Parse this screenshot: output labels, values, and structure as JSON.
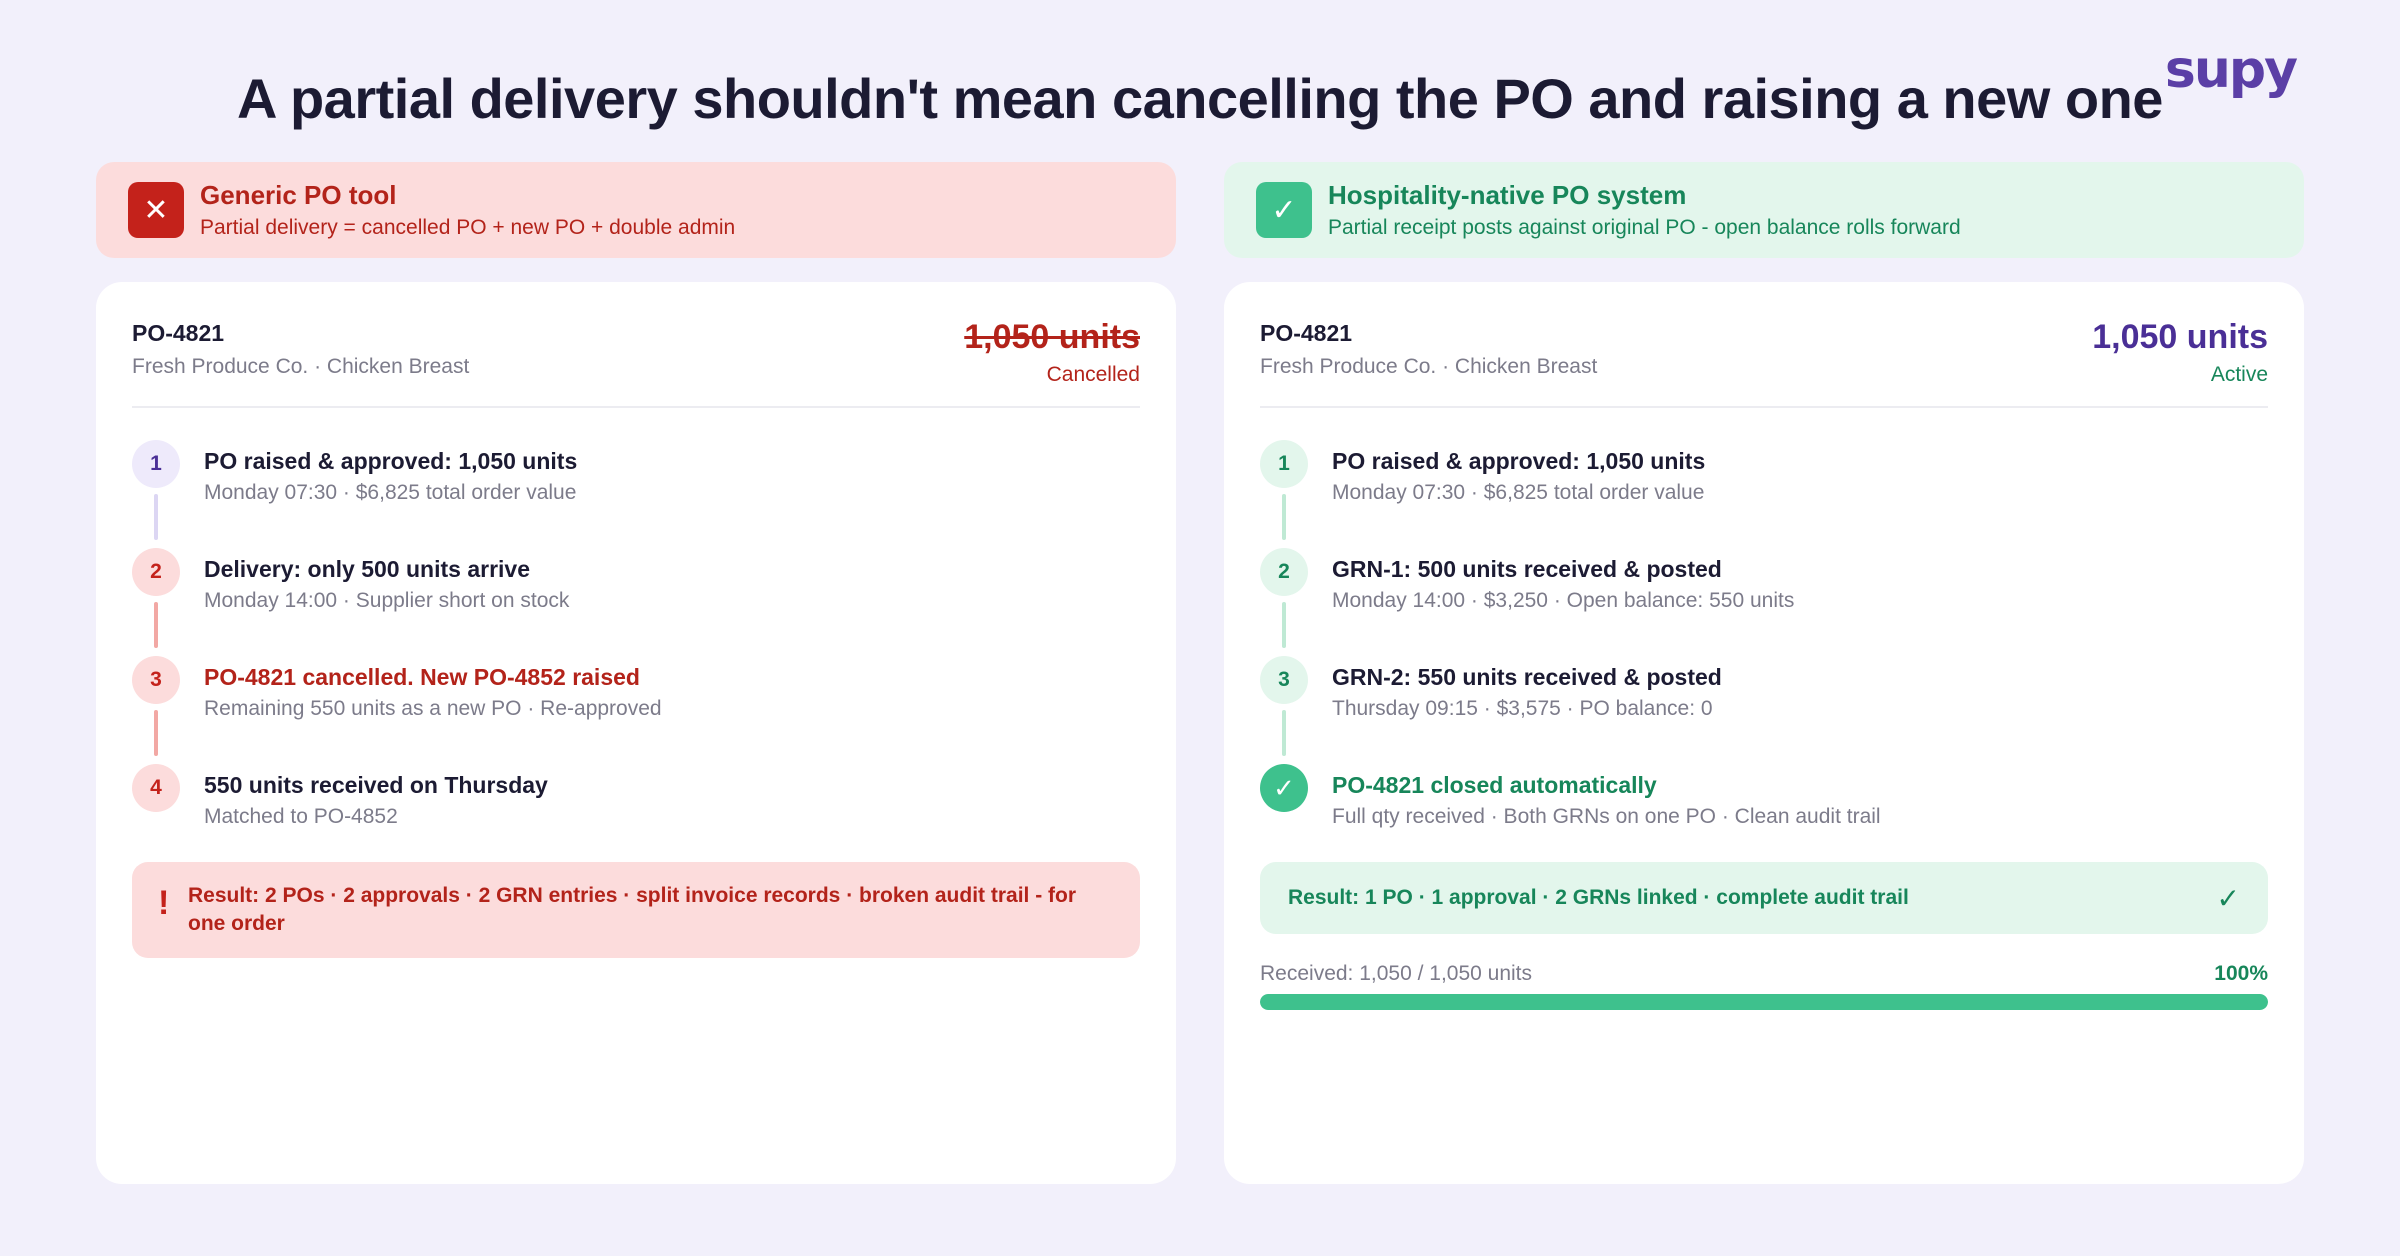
{
  "brand": {
    "logo": "supy"
  },
  "headline": "A partial delivery shouldn't mean cancelling the PO and raising a new one",
  "left": {
    "banner": {
      "icon": "x-icon",
      "title": "Generic PO tool",
      "subtitle": "Partial delivery = cancelled PO + new PO + double admin"
    },
    "card": {
      "po_number": "PO-4821",
      "supplier": "Fresh Produce Co. · Chicken Breast",
      "quantity": "1,050 units",
      "status": "Cancelled",
      "steps": [
        {
          "num": "1",
          "title": "PO raised & approved: 1,050 units",
          "sub": "Monday 07:30 · $6,825 total order value"
        },
        {
          "num": "2",
          "title": "Delivery: only 500 units arrive",
          "sub": "Monday 14:00 · Supplier short on stock"
        },
        {
          "num": "3",
          "title": "PO-4821 cancelled. New PO-4852 raised",
          "sub": "Remaining 550 units as a new PO · Re-approved"
        },
        {
          "num": "4",
          "title": "550 units received on Thursday",
          "sub": "Matched to PO-4852"
        }
      ],
      "result": {
        "icon": "!",
        "text": "Result: 2 POs · 2 approvals · 2 GRN entries · split invoice records · broken audit trail - for one order"
      }
    }
  },
  "right": {
    "banner": {
      "icon": "✓",
      "title": "Hospitality-native PO system",
      "subtitle": "Partial receipt posts against original PO - open balance rolls forward"
    },
    "card": {
      "po_number": "PO-4821",
      "supplier": "Fresh Produce Co. · Chicken Breast",
      "quantity": "1,050 units",
      "status": "Active",
      "steps": [
        {
          "num": "1",
          "title": "PO raised & approved: 1,050 units",
          "sub": "Monday 07:30 · $6,825 total order value"
        },
        {
          "num": "2",
          "title": "GRN-1: 500 units received & posted",
          "sub": "Monday 14:00 · $3,250 · Open balance: 550 units"
        },
        {
          "num": "3",
          "title": "GRN-2: 550 units received & posted",
          "sub": "Thursday 09:15 · $3,575 · PO balance: 0"
        },
        {
          "num": "✓",
          "title": "PO-4821 closed automatically",
          "sub": "Full qty received · Both GRNs on one PO · Clean audit trail"
        }
      ],
      "result": {
        "text": "Result: 1 PO · 1 approval · 2 GRNs linked · complete audit trail",
        "check": "✓"
      },
      "progress": {
        "label": "Received: 1,050 / 1,050 units",
        "percent_label": "100%",
        "fraction": 1.0
      }
    }
  },
  "colors": {
    "bad": "#c4221b",
    "good": "#3ec18d",
    "brand": "#5b3fa6"
  }
}
